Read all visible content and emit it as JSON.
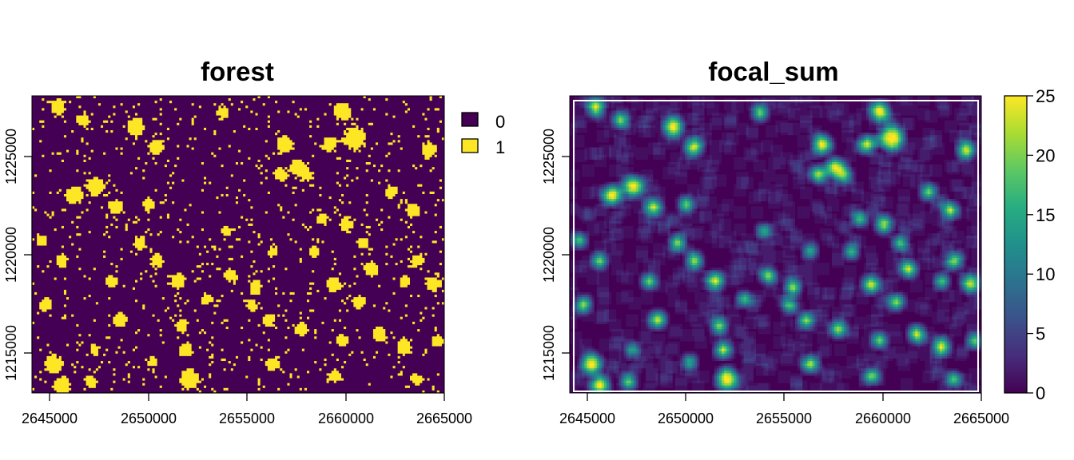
{
  "colors": {
    "forest_0": "#440154",
    "forest_1": "#FDE725",
    "viridis": [
      "#440154",
      "#472D7B",
      "#3B528B",
      "#2C728E",
      "#21908C",
      "#27AD81",
      "#5DC863",
      "#AADC32",
      "#FDE725"
    ]
  },
  "chart_data": [
    {
      "type": "heatmap",
      "title": "forest",
      "xlabel": "",
      "ylabel": "",
      "xlim": [
        2644000,
        2665000
      ],
      "ylim": [
        1212000,
        1227800
      ],
      "x_ticks": [
        2645000,
        2650000,
        2655000,
        2660000,
        2665000
      ],
      "x_tick_labels": [
        "2645000",
        "2650000",
        "2655000",
        "2660000",
        "2665000"
      ],
      "y_ticks": [
        1215000,
        1220000,
        1225000
      ],
      "y_tick_labels": [
        "1215000",
        "1220000",
        "1225000"
      ],
      "values": "binary raster: 0 = non-forest, 1 = forest",
      "legend": {
        "type": "categorical",
        "placement": "right",
        "entries": [
          {
            "label": "0",
            "color": "#440154"
          },
          {
            "label": "1",
            "color": "#FDE725"
          }
        ]
      }
    },
    {
      "type": "heatmap",
      "title": "focal_sum",
      "xlabel": "",
      "ylabel": "",
      "xlim": [
        2644000,
        2665000
      ],
      "ylim": [
        1212000,
        1227800
      ],
      "x_ticks": [
        2645000,
        2650000,
        2655000,
        2660000,
        2665000
      ],
      "x_tick_labels": [
        "2645000",
        "2650000",
        "2655000",
        "2660000",
        "2665000"
      ],
      "y_ticks": [
        1215000,
        1220000,
        1225000
      ],
      "y_tick_labels": [
        "1215000",
        "1220000",
        "1225000"
      ],
      "values": "focal sum of forest cells (range 0-25)",
      "legend": {
        "type": "continuous",
        "placement": "right",
        "range": [
          0,
          25
        ],
        "ticks": [
          0,
          5,
          10,
          15,
          20,
          25
        ],
        "tick_labels": [
          "0",
          "5",
          "10",
          "15",
          "20",
          "25"
        ],
        "colormap": "viridis"
      }
    }
  ]
}
